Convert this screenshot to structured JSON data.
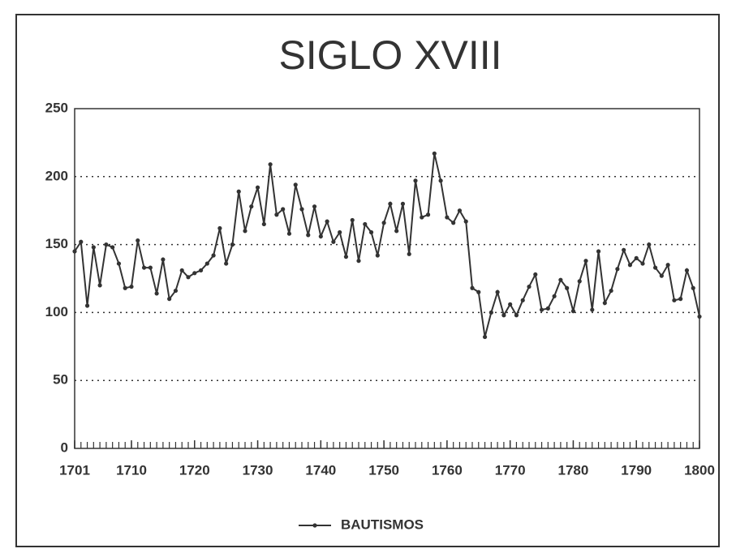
{
  "chart_data": {
    "type": "line",
    "title": "SIGLO XVIII",
    "x": [
      1701,
      1702,
      1703,
      1704,
      1705,
      1706,
      1707,
      1708,
      1709,
      1710,
      1711,
      1712,
      1713,
      1714,
      1715,
      1716,
      1717,
      1718,
      1719,
      1720,
      1721,
      1722,
      1723,
      1724,
      1725,
      1726,
      1727,
      1728,
      1729,
      1730,
      1731,
      1732,
      1733,
      1734,
      1735,
      1736,
      1737,
      1738,
      1739,
      1740,
      1741,
      1742,
      1743,
      1744,
      1745,
      1746,
      1747,
      1748,
      1749,
      1750,
      1751,
      1752,
      1753,
      1754,
      1755,
      1756,
      1757,
      1758,
      1759,
      1760,
      1761,
      1762,
      1763,
      1764,
      1765,
      1766,
      1767,
      1768,
      1769,
      1770,
      1771,
      1772,
      1773,
      1774,
      1775,
      1776,
      1777,
      1778,
      1779,
      1780,
      1781,
      1782,
      1783,
      1784,
      1785,
      1786,
      1787,
      1788,
      1789,
      1790,
      1791,
      1792,
      1793,
      1794,
      1795,
      1796,
      1797,
      1798,
      1799,
      1800
    ],
    "series": [
      {
        "name": "BAUTISMOS",
        "color": "#333333",
        "values": [
          145,
          152,
          105,
          148,
          120,
          150,
          148,
          136,
          118,
          119,
          153,
          133,
          133,
          114,
          139,
          110,
          116,
          131,
          126,
          129,
          131,
          136,
          142,
          162,
          136,
          150,
          189,
          160,
          178,
          192,
          165,
          209,
          172,
          176,
          158,
          194,
          176,
          157,
          178,
          156,
          167,
          152,
          159,
          141,
          168,
          138,
          165,
          159,
          142,
          166,
          180,
          160,
          180,
          143,
          197,
          170,
          172,
          217,
          197,
          170,
          166,
          175,
          167,
          118,
          115,
          82,
          100,
          115,
          98,
          106,
          98,
          109,
          119,
          128,
          102,
          103,
          112,
          124,
          118,
          101,
          123,
          138,
          102,
          145,
          107,
          116,
          132,
          146,
          135,
          140,
          136,
          150,
          133,
          127,
          135,
          109,
          110,
          131,
          118,
          97
        ]
      }
    ],
    "xlim": [
      1701,
      1800
    ],
    "xticks": [
      1701,
      1710,
      1720,
      1730,
      1740,
      1750,
      1760,
      1770,
      1780,
      1790,
      1800
    ],
    "ylim": [
      0,
      250
    ],
    "yticks": [
      0,
      50,
      100,
      150,
      200,
      250
    ],
    "grid": true,
    "legend": "bottom"
  }
}
